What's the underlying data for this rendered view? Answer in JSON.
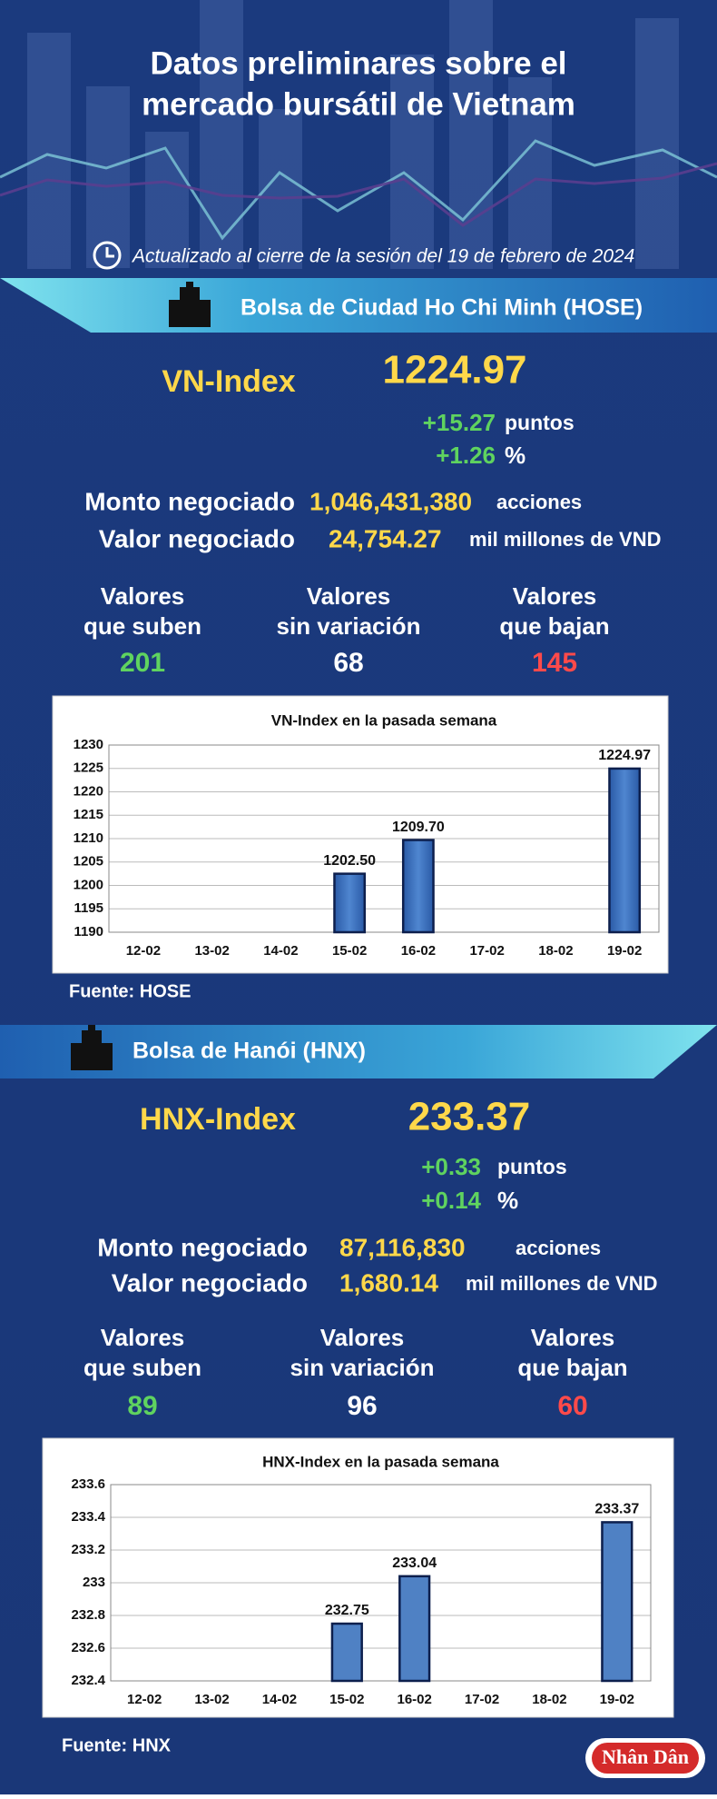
{
  "header": {
    "title_lines": [
      "Datos preliminares sobre el",
      "mercado bursátil de Vietnam"
    ],
    "updated": "Actualizado al cierre de la sesión del 19 de febrero de 2024"
  },
  "hose": {
    "exchange": "Bolsa de Ciudad Ho Chi Minh (HOSE)",
    "index_name": "VN-Index",
    "index_value": "1224.97",
    "change_points": "+15.27",
    "points_unit": "puntos",
    "change_pct": "+1.26",
    "pct_unit": "%",
    "volume_label": "Monto negociado",
    "volume": "1,046,431,380",
    "volume_unit": "acciones",
    "value_label": "Valor negociado",
    "value": "24,754.27",
    "value_unit": "mil millones de VND",
    "breadth": [
      {
        "label_lines": [
          "Valores",
          "que suben"
        ],
        "count": "201"
      },
      {
        "label_lines": [
          "Valores",
          "sin variación"
        ],
        "count": "68"
      },
      {
        "label_lines": [
          "Valores",
          "que bajan"
        ],
        "count": "145"
      }
    ],
    "source": "Fuente: HOSE"
  },
  "hnx": {
    "exchange": "Bolsa de Hanói (HNX)",
    "index_name": "HNX-Index",
    "index_value": "233.37",
    "change_points": "+0.33",
    "points_unit": "puntos",
    "change_pct": "+0.14",
    "pct_unit": "%",
    "volume_label": "Monto negociado",
    "volume": "87,116,830",
    "volume_unit": "acciones",
    "value_label": "Valor negociado",
    "value": "1,680.14",
    "value_unit": "mil millones de VND",
    "breadth": [
      {
        "label_lines": [
          "Valores",
          "que suben"
        ],
        "count": "89"
      },
      {
        "label_lines": [
          "Valores",
          "sin variación"
        ],
        "count": "96"
      },
      {
        "label_lines": [
          "Valores",
          "que bajan"
        ],
        "count": "60"
      }
    ],
    "source": "Fuente:  HNX"
  },
  "logo": "Nhân Dân",
  "chart_data": [
    {
      "type": "bar",
      "title": "VN-Index en la pasada semana",
      "categories": [
        "12-02",
        "13-02",
        "14-02",
        "15-02",
        "16-02",
        "17-02",
        "18-02",
        "19-02"
      ],
      "values": [
        null,
        null,
        null,
        1202.5,
        1209.7,
        null,
        null,
        1224.97
      ],
      "value_labels": [
        null,
        null,
        null,
        "1202.50",
        "1209.70",
        null,
        null,
        "1224.97"
      ],
      "color": "#2f64b4",
      "ylim": [
        1190,
        1230
      ],
      "yticks": [
        1190,
        1195,
        1200,
        1205,
        1210,
        1215,
        1220,
        1225,
        1230
      ],
      "grid": true
    },
    {
      "type": "bar",
      "title": "HNX-Index en la pasada semana",
      "categories": [
        "12-02",
        "13-02",
        "14-02",
        "15-02",
        "16-02",
        "17-02",
        "18-02",
        "19-02"
      ],
      "values": [
        null,
        null,
        null,
        232.75,
        233.04,
        null,
        null,
        233.37
      ],
      "color": "#4f81c4",
      "ylim": [
        232.4,
        233.6
      ],
      "yticks": [
        232.4,
        232.6,
        232.8,
        233,
        233.2,
        233.4,
        233.6
      ],
      "grid": true
    }
  ]
}
